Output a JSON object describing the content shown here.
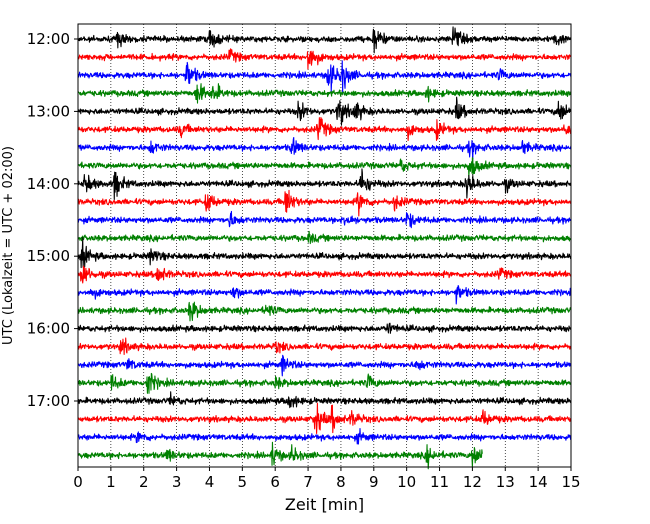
{
  "chart_data": {
    "type": "line",
    "title": "",
    "xlabel": "Zeit  [min]",
    "ylabel": "UTC (Lokalzeit = UTC + 02:00)",
    "xlim": [
      0,
      15
    ],
    "x_ticks": [
      0,
      1,
      2,
      3,
      4,
      5,
      6,
      7,
      8,
      9,
      10,
      11,
      12,
      13,
      14,
      15
    ],
    "x_tick_labels": [
      "0",
      "1",
      "2",
      "3",
      "4",
      "5",
      "6",
      "7",
      "8",
      "9",
      "10",
      "11",
      "12",
      "13",
      "14",
      "15"
    ],
    "y_tick_labels": [
      "12:00",
      "13:00",
      "14:00",
      "15:00",
      "16:00",
      "17:00"
    ],
    "trace_start_time": "12:00",
    "trace_interval_min": 15,
    "grid": "vertical dotted",
    "color_cycle": [
      "#000000",
      "#ff0000",
      "#0000ff",
      "#008000"
    ],
    "series": [
      {
        "start": "12:00",
        "color": "#000000",
        "end_min": 15,
        "events": [
          {
            "t": 1.2,
            "a": 0.7
          },
          {
            "t": 4.0,
            "a": 1.0
          },
          {
            "t": 9.0,
            "a": 1.2
          },
          {
            "t": 11.4,
            "a": 1.1
          },
          {
            "t": 14.5,
            "a": 0.6
          }
        ]
      },
      {
        "start": "12:15",
        "color": "#ff0000",
        "end_min": 15,
        "events": [
          {
            "t": 4.6,
            "a": 0.6
          },
          {
            "t": 7.0,
            "a": 1.6
          }
        ]
      },
      {
        "start": "12:30",
        "color": "#0000ff",
        "end_min": 15,
        "events": [
          {
            "t": 3.3,
            "a": 1.4
          },
          {
            "t": 7.6,
            "a": 1.6
          },
          {
            "t": 8.0,
            "a": 1.5
          },
          {
            "t": 12.8,
            "a": 0.5
          }
        ]
      },
      {
        "start": "12:45",
        "color": "#008000",
        "end_min": 15,
        "events": [
          {
            "t": 3.6,
            "a": 1.2
          },
          {
            "t": 4.1,
            "a": 0.9
          },
          {
            "t": 10.6,
            "a": 0.6
          }
        ]
      },
      {
        "start": "13:00",
        "color": "#000000",
        "end_min": 15,
        "events": [
          {
            "t": 6.7,
            "a": 0.9
          },
          {
            "t": 7.9,
            "a": 1.5
          },
          {
            "t": 8.4,
            "a": 1.0
          },
          {
            "t": 11.5,
            "a": 1.0
          },
          {
            "t": 14.6,
            "a": 1.2
          }
        ]
      },
      {
        "start": "13:15",
        "color": "#ff0000",
        "end_min": 15,
        "events": [
          {
            "t": 3.1,
            "a": 0.6
          },
          {
            "t": 7.3,
            "a": 1.3
          },
          {
            "t": 10.0,
            "a": 0.7
          },
          {
            "t": 10.9,
            "a": 0.8
          },
          {
            "t": 14.8,
            "a": 0.6
          }
        ]
      },
      {
        "start": "13:30",
        "color": "#0000ff",
        "end_min": 15,
        "events": [
          {
            "t": 2.2,
            "a": 0.6
          },
          {
            "t": 6.5,
            "a": 0.9
          },
          {
            "t": 11.9,
            "a": 0.8
          },
          {
            "t": 13.5,
            "a": 0.6
          }
        ]
      },
      {
        "start": "13:45",
        "color": "#008000",
        "end_min": 15,
        "events": [
          {
            "t": 9.8,
            "a": 0.6
          },
          {
            "t": 11.9,
            "a": 1.3
          }
        ]
      },
      {
        "start": "14:00",
        "color": "#000000",
        "end_min": 15,
        "events": [
          {
            "t": 0.2,
            "a": 1.0
          },
          {
            "t": 1.1,
            "a": 1.3
          },
          {
            "t": 8.6,
            "a": 1.4
          },
          {
            "t": 11.8,
            "a": 1.4
          },
          {
            "t": 13.0,
            "a": 0.5
          }
        ]
      },
      {
        "start": "14:15",
        "color": "#ff0000",
        "end_min": 15,
        "events": [
          {
            "t": 3.9,
            "a": 1.0
          },
          {
            "t": 6.3,
            "a": 1.5
          },
          {
            "t": 8.5,
            "a": 1.0
          },
          {
            "t": 9.6,
            "a": 0.7
          }
        ]
      },
      {
        "start": "14:30",
        "color": "#0000ff",
        "end_min": 15,
        "events": [
          {
            "t": 4.6,
            "a": 0.7
          },
          {
            "t": 8.1,
            "a": 0.6
          },
          {
            "t": 10.0,
            "a": 0.8
          }
        ]
      },
      {
        "start": "14:45",
        "color": "#008000",
        "end_min": 15,
        "events": [
          {
            "t": 7.0,
            "a": 0.4
          }
        ]
      },
      {
        "start": "15:00",
        "color": "#000000",
        "end_min": 15,
        "events": [
          {
            "t": 0.1,
            "a": 1.3
          },
          {
            "t": 2.2,
            "a": 0.8
          }
        ]
      },
      {
        "start": "15:15",
        "color": "#ff0000",
        "end_min": 15,
        "events": [
          {
            "t": 0.1,
            "a": 1.2
          },
          {
            "t": 2.4,
            "a": 1.0
          },
          {
            "t": 12.8,
            "a": 0.5
          }
        ]
      },
      {
        "start": "15:30",
        "color": "#0000ff",
        "end_min": 15,
        "events": [
          {
            "t": 0.4,
            "a": 0.5
          },
          {
            "t": 4.7,
            "a": 0.6
          },
          {
            "t": 11.5,
            "a": 0.8
          }
        ]
      },
      {
        "start": "15:45",
        "color": "#008000",
        "end_min": 15,
        "events": [
          {
            "t": 3.4,
            "a": 1.2
          },
          {
            "t": 5.7,
            "a": 0.6
          }
        ]
      },
      {
        "start": "16:00",
        "color": "#000000",
        "end_min": 15,
        "events": [
          {
            "t": 9.4,
            "a": 0.5
          }
        ]
      },
      {
        "start": "16:15",
        "color": "#ff0000",
        "end_min": 15,
        "events": [
          {
            "t": 1.3,
            "a": 0.8
          },
          {
            "t": 6.0,
            "a": 0.5
          }
        ]
      },
      {
        "start": "16:30",
        "color": "#0000ff",
        "end_min": 15,
        "events": [
          {
            "t": 1.5,
            "a": 0.5
          },
          {
            "t": 6.2,
            "a": 0.8
          },
          {
            "t": 10.3,
            "a": 0.5
          }
        ]
      },
      {
        "start": "16:45",
        "color": "#008000",
        "end_min": 15,
        "events": [
          {
            "t": 2.1,
            "a": 1.3
          },
          {
            "t": 1.0,
            "a": 0.7
          },
          {
            "t": 8.8,
            "a": 0.7
          },
          {
            "t": 6.0,
            "a": 0.5
          }
        ]
      },
      {
        "start": "17:00",
        "color": "#000000",
        "end_min": 15,
        "events": [
          {
            "t": 6.4,
            "a": 0.8
          },
          {
            "t": 2.8,
            "a": 0.5
          }
        ]
      },
      {
        "start": "17:15",
        "color": "#ff0000",
        "end_min": 15,
        "events": [
          {
            "t": 7.2,
            "a": 1.6
          },
          {
            "t": 7.7,
            "a": 1.0
          },
          {
            "t": 8.3,
            "a": 0.7
          },
          {
            "t": 12.3,
            "a": 0.8
          }
        ]
      },
      {
        "start": "17:30",
        "color": "#0000ff",
        "end_min": 15,
        "events": [
          {
            "t": 1.8,
            "a": 0.5
          },
          {
            "t": 8.5,
            "a": 0.5
          }
        ]
      },
      {
        "start": "17:45",
        "color": "#008000",
        "end_min": 12.3,
        "events": [
          {
            "t": 2.7,
            "a": 0.6
          },
          {
            "t": 5.9,
            "a": 1.0
          },
          {
            "t": 6.5,
            "a": 0.7
          },
          {
            "t": 10.6,
            "a": 0.9
          },
          {
            "t": 12.0,
            "a": 1.3
          }
        ]
      }
    ]
  }
}
